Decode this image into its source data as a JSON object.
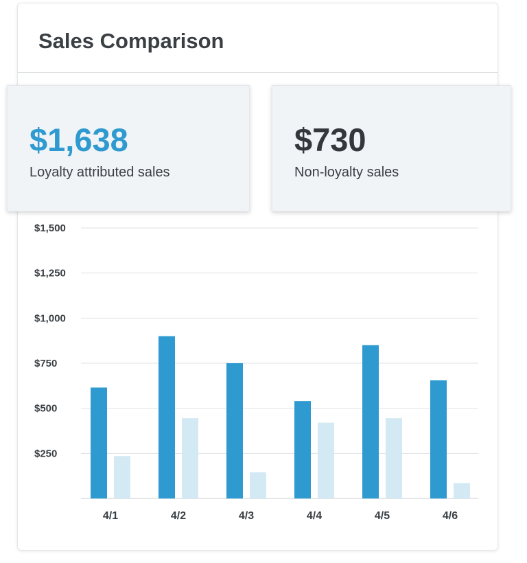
{
  "card": {
    "title": "Sales Comparison"
  },
  "stats": [
    {
      "value": "$1,638",
      "label": "Loyalty attributed sales",
      "color": "#2e9ad0"
    },
    {
      "value": "$730",
      "label": "Non-loyalty sales",
      "color": "#33383c"
    }
  ],
  "chart_data": {
    "type": "bar",
    "title": "Sales Comparison",
    "categories": [
      "4/1",
      "4/2",
      "4/3",
      "4/4",
      "4/5",
      "4/6"
    ],
    "series": [
      {
        "name": "Loyalty attributed sales",
        "values": [
          615,
          900,
          750,
          540,
          850,
          655
        ],
        "color": "#2e9ad0"
      },
      {
        "name": "Non-loyalty sales",
        "values": [
          235,
          445,
          145,
          420,
          445,
          85
        ],
        "color": "#d3e9f3"
      }
    ],
    "ylim": [
      0,
      1500
    ],
    "yticks": [
      250,
      500,
      750,
      1000,
      1250,
      1500
    ],
    "ytick_labels": [
      "$250",
      "$500",
      "$750",
      "$1,000",
      "$1,250",
      "$1,500"
    ],
    "grid": true,
    "xlabel": "",
    "ylabel": ""
  }
}
